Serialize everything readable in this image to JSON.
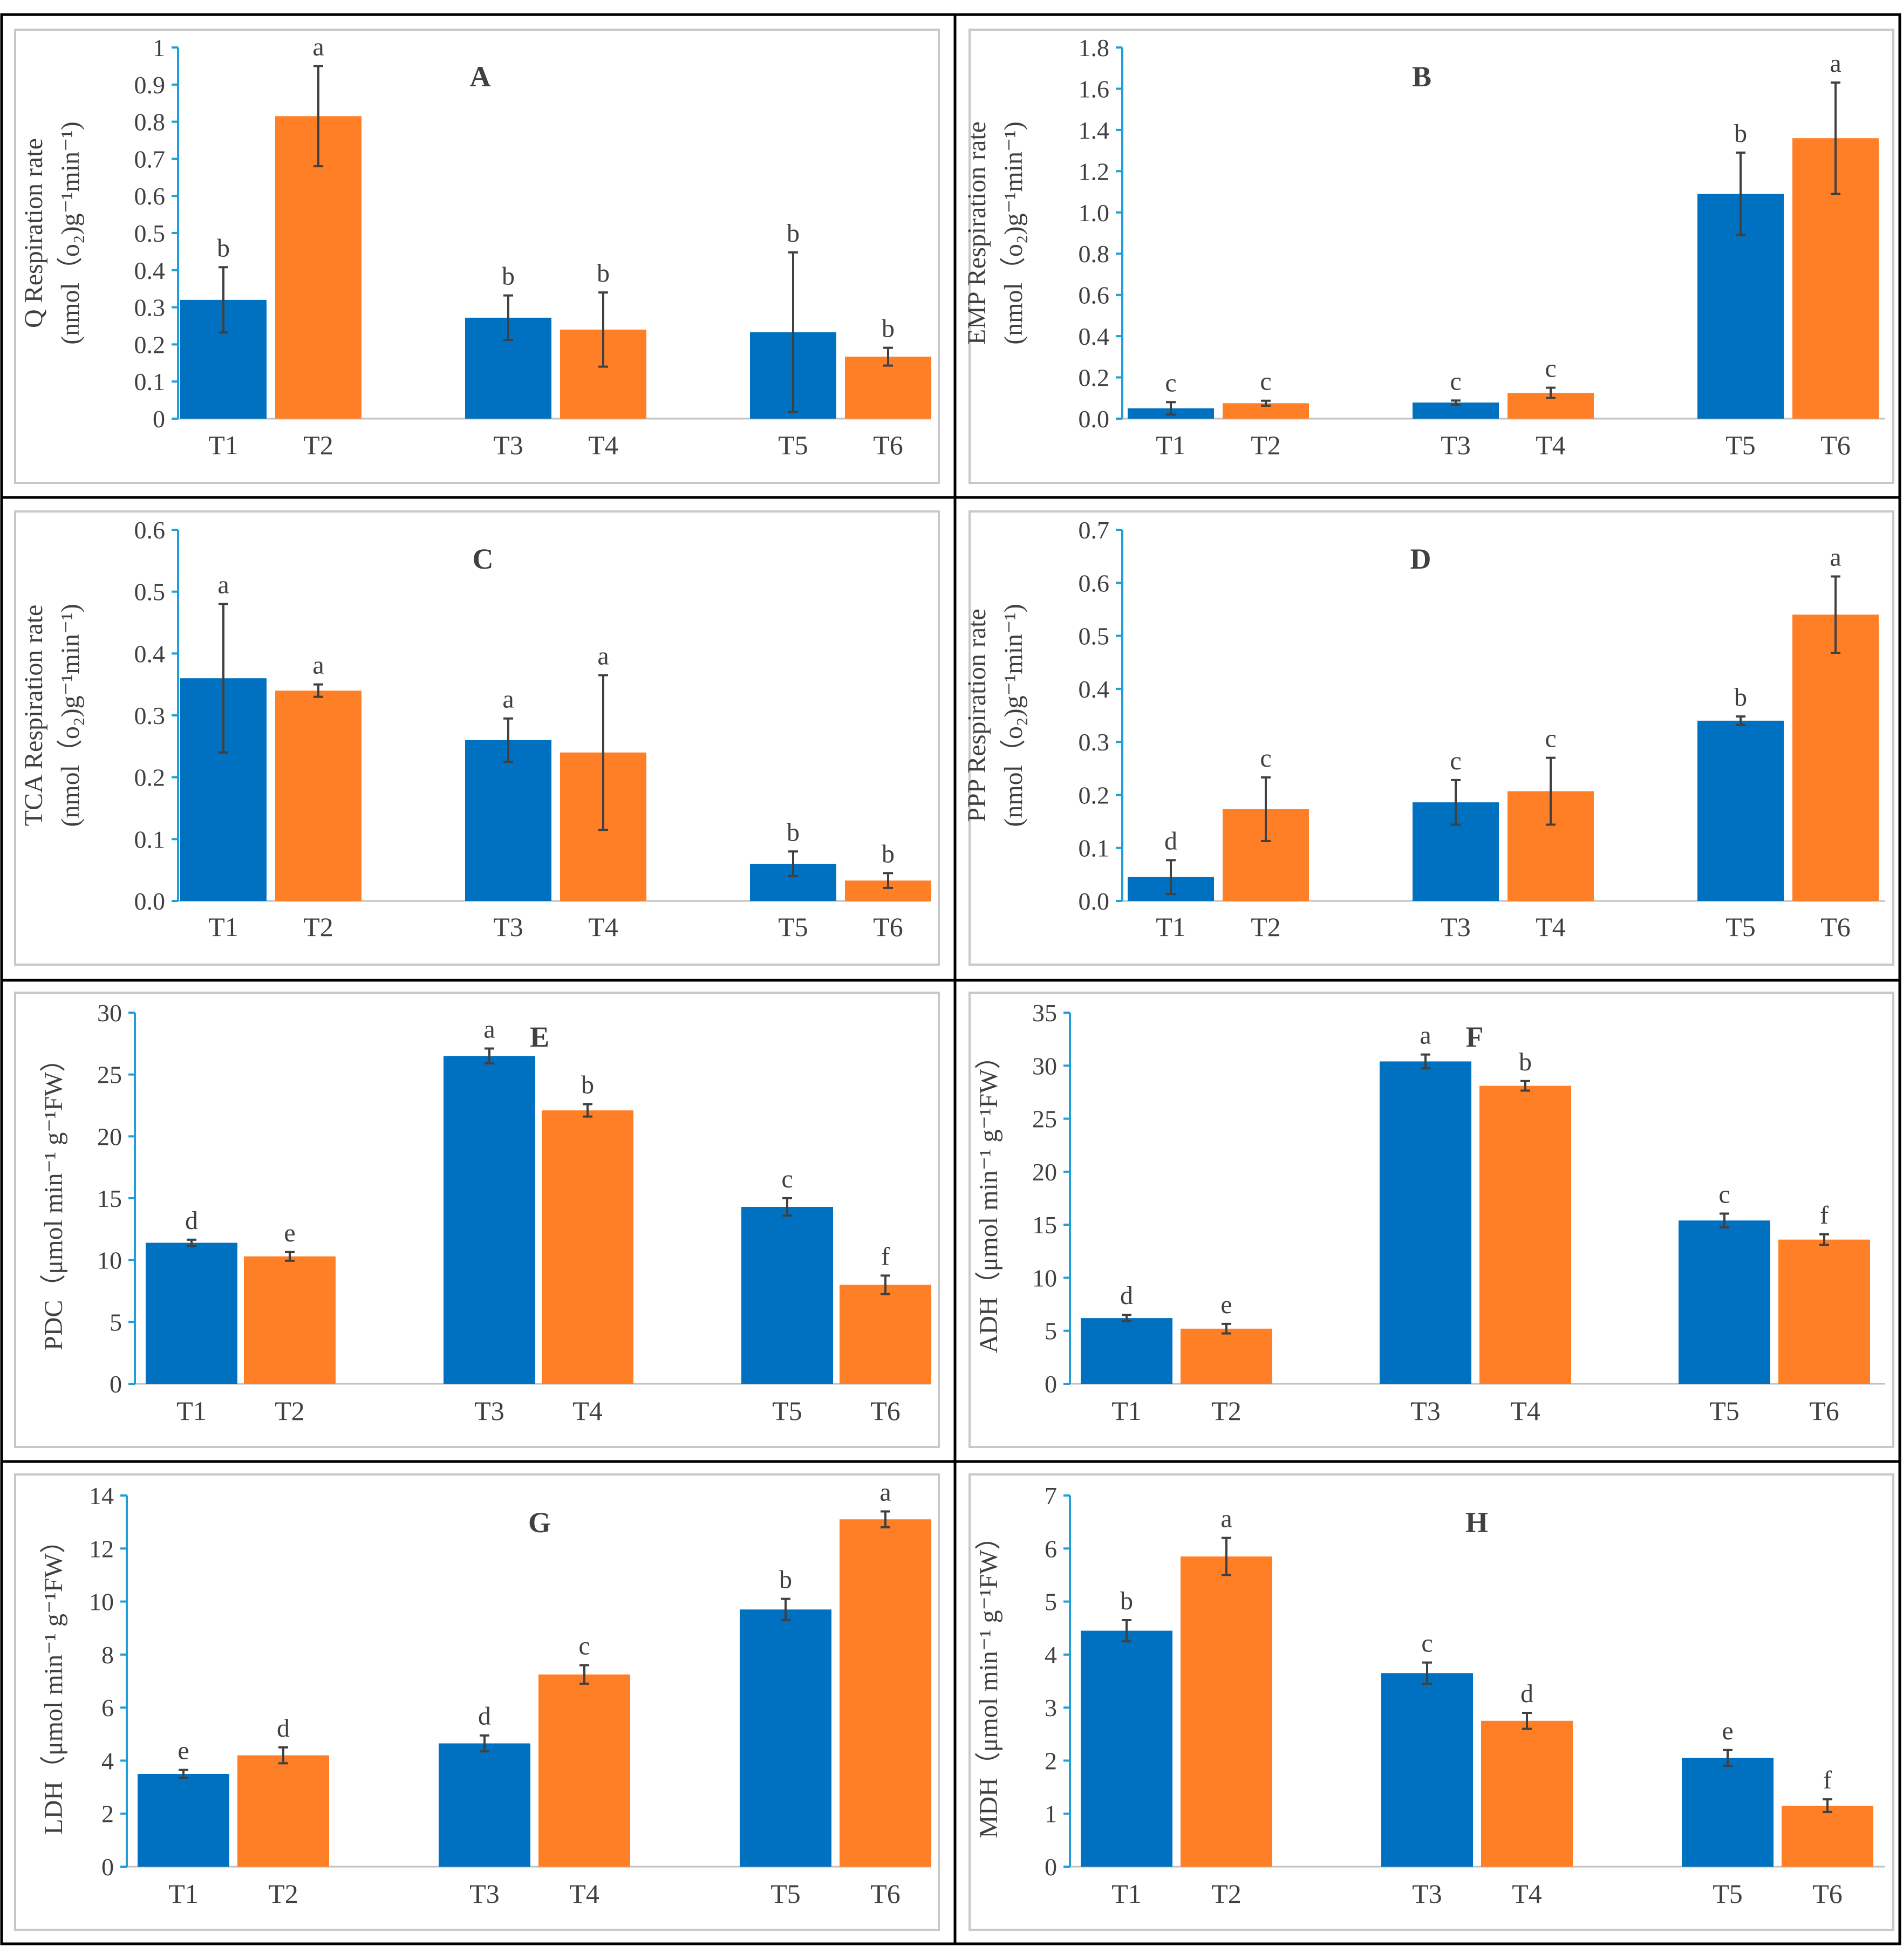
{
  "colors": {
    "series_a": "#0070c0",
    "series_b": "#ff7f27",
    "axis": "#1e9fd8",
    "frame": "#c8c8c8"
  },
  "chart_data": [
    {
      "type": "bar",
      "panel": "A",
      "title": "A",
      "categories": [
        "T1",
        "T2",
        "T3",
        "T4",
        "T5",
        "T6"
      ],
      "values": [
        0.32,
        0.815,
        0.272,
        0.24,
        0.233,
        0.167
      ],
      "errors": [
        0.088,
        0.135,
        0.06,
        0.1,
        0.215,
        0.024
      ],
      "letters": [
        "b",
        "a",
        "b",
        "b",
        "b",
        "b"
      ],
      "ylabel_lines": [
        "Q Respiration rate",
        "(nmol（o₂)g⁻¹min⁻¹)"
      ],
      "ylim": [
        0,
        1
      ],
      "yticks": [
        0,
        0.1,
        0.2,
        0.3,
        0.4,
        0.5,
        0.6,
        0.7,
        0.8,
        0.9,
        1
      ],
      "ytick_labels": [
        "0",
        "0.1",
        "0.2",
        "0.3",
        "0.4",
        "0.5",
        "0.6",
        "0.7",
        "0.8",
        "0.9",
        "1"
      ]
    },
    {
      "type": "bar",
      "panel": "B",
      "title": "B",
      "categories": [
        "T1",
        "T2",
        "T3",
        "T4",
        "T5",
        "T6"
      ],
      "values": [
        0.05,
        0.075,
        0.078,
        0.125,
        1.09,
        1.36
      ],
      "errors": [
        0.03,
        0.012,
        0.01,
        0.025,
        0.2,
        0.27
      ],
      "letters": [
        "c",
        "c",
        "c",
        "c",
        "b",
        "a"
      ],
      "ylabel_lines": [
        "EMP Respiration rate",
        "(nmol（o₂)g⁻¹min⁻¹)"
      ],
      "ylim": [
        0,
        1.8
      ],
      "yticks": [
        0,
        0.2,
        0.4,
        0.6,
        0.8,
        1.0,
        1.2,
        1.4,
        1.6,
        1.8
      ],
      "ytick_labels": [
        "0.0",
        "0.2",
        "0.4",
        "0.6",
        "0.8",
        "1.0",
        "1.2",
        "1.4",
        "1.6",
        "1.8"
      ]
    },
    {
      "type": "bar",
      "panel": "C",
      "title": "C",
      "categories": [
        "T1",
        "T2",
        "T3",
        "T4",
        "T5",
        "T6"
      ],
      "values": [
        0.36,
        0.34,
        0.26,
        0.24,
        0.06,
        0.033
      ],
      "errors": [
        0.12,
        0.01,
        0.035,
        0.125,
        0.02,
        0.012
      ],
      "letters": [
        "a",
        "a",
        "a",
        "a",
        "b",
        "b"
      ],
      "ylabel_lines": [
        "TCA Respiration rate",
        "(nmol（o₂)g⁻¹min⁻¹)"
      ],
      "ylim": [
        0,
        0.6
      ],
      "yticks": [
        0,
        0.1,
        0.2,
        0.3,
        0.4,
        0.5,
        0.6
      ],
      "ytick_labels": [
        "0.0",
        "0.1",
        "0.2",
        "0.3",
        "0.4",
        "0.5",
        "0.6"
      ]
    },
    {
      "type": "bar",
      "panel": "D",
      "title": "D",
      "categories": [
        "T1",
        "T2",
        "T3",
        "T4",
        "T5",
        "T6"
      ],
      "values": [
        0.045,
        0.173,
        0.186,
        0.207,
        0.34,
        0.54
      ],
      "errors": [
        0.032,
        0.06,
        0.042,
        0.063,
        0.008,
        0.072
      ],
      "letters": [
        "d",
        "c",
        "c",
        "c",
        "b",
        "a"
      ],
      "ylabel_lines": [
        "PPP Respiration rate",
        "(nmol（o₂)g⁻¹min⁻¹)"
      ],
      "ylim": [
        0,
        0.7
      ],
      "yticks": [
        0,
        0.1,
        0.2,
        0.3,
        0.4,
        0.5,
        0.6,
        0.7
      ],
      "ytick_labels": [
        "0.0",
        "0.1",
        "0.2",
        "0.3",
        "0.4",
        "0.5",
        "0.6",
        "0.7"
      ]
    },
    {
      "type": "bar",
      "panel": "E",
      "title": "E",
      "categories": [
        "T1",
        "T2",
        "T3",
        "T4",
        "T5",
        "T6"
      ],
      "values": [
        11.4,
        10.3,
        26.5,
        22.1,
        14.3,
        8.0
      ],
      "errors": [
        0.25,
        0.35,
        0.6,
        0.5,
        0.7,
        0.75
      ],
      "letters": [
        "d",
        "e",
        "a",
        "b",
        "c",
        "f"
      ],
      "ylabel_lines": [
        "PDC（μmol min⁻¹ g⁻¹FW）"
      ],
      "ylim": [
        0,
        30
      ],
      "yticks": [
        0,
        5,
        10,
        15,
        20,
        25,
        30
      ],
      "ytick_labels": [
        "0",
        "5",
        "10",
        "15",
        "20",
        "25",
        "30"
      ]
    },
    {
      "type": "bar",
      "panel": "F",
      "title": "F",
      "categories": [
        "T1",
        "T2",
        "T3",
        "T4",
        "T5",
        "T6"
      ],
      "values": [
        6.2,
        5.2,
        30.4,
        28.1,
        15.4,
        13.6
      ],
      "errors": [
        0.3,
        0.45,
        0.65,
        0.45,
        0.65,
        0.5
      ],
      "letters": [
        "d",
        "e",
        "a",
        "b",
        "c",
        "f"
      ],
      "ylabel_lines": [
        "ADH（μmol min⁻¹ g⁻¹FW）"
      ],
      "ylim": [
        0,
        35
      ],
      "yticks": [
        0,
        5,
        10,
        15,
        20,
        25,
        30,
        35
      ],
      "ytick_labels": [
        "0",
        "5",
        "10",
        "15",
        "20",
        "25",
        "30",
        "35"
      ]
    },
    {
      "type": "bar",
      "panel": "G",
      "title": "G",
      "categories": [
        "T1",
        "T2",
        "T3",
        "T4",
        "T5",
        "T6"
      ],
      "values": [
        3.5,
        4.2,
        4.65,
        7.25,
        9.7,
        13.1
      ],
      "errors": [
        0.15,
        0.3,
        0.3,
        0.35,
        0.4,
        0.3
      ],
      "letters": [
        "e",
        "d",
        "d",
        "c",
        "b",
        "a"
      ],
      "ylabel_lines": [
        "LDH（μmol min⁻¹ g⁻¹FW）"
      ],
      "ylim": [
        0,
        14
      ],
      "yticks": [
        0,
        2,
        4,
        6,
        8,
        10,
        12,
        14
      ],
      "ytick_labels": [
        "0",
        "2",
        "4",
        "6",
        "8",
        "10",
        "12",
        "14"
      ]
    },
    {
      "type": "bar",
      "panel": "H",
      "title": "H",
      "categories": [
        "T1",
        "T2",
        "T3",
        "T4",
        "T5",
        "T6"
      ],
      "values": [
        4.45,
        5.85,
        3.65,
        2.75,
        2.05,
        1.15
      ],
      "errors": [
        0.2,
        0.35,
        0.2,
        0.15,
        0.15,
        0.12
      ],
      "letters": [
        "b",
        "a",
        "c",
        "d",
        "e",
        "f"
      ],
      "ylabel_lines": [
        "MDH（μmol min⁻¹ g⁻¹FW）"
      ],
      "ylim": [
        0,
        7
      ],
      "yticks": [
        0,
        1,
        2,
        3,
        4,
        5,
        6,
        7
      ],
      "ytick_labels": [
        "0",
        "1",
        "2",
        "3",
        "4",
        "5",
        "6",
        "7"
      ]
    }
  ]
}
